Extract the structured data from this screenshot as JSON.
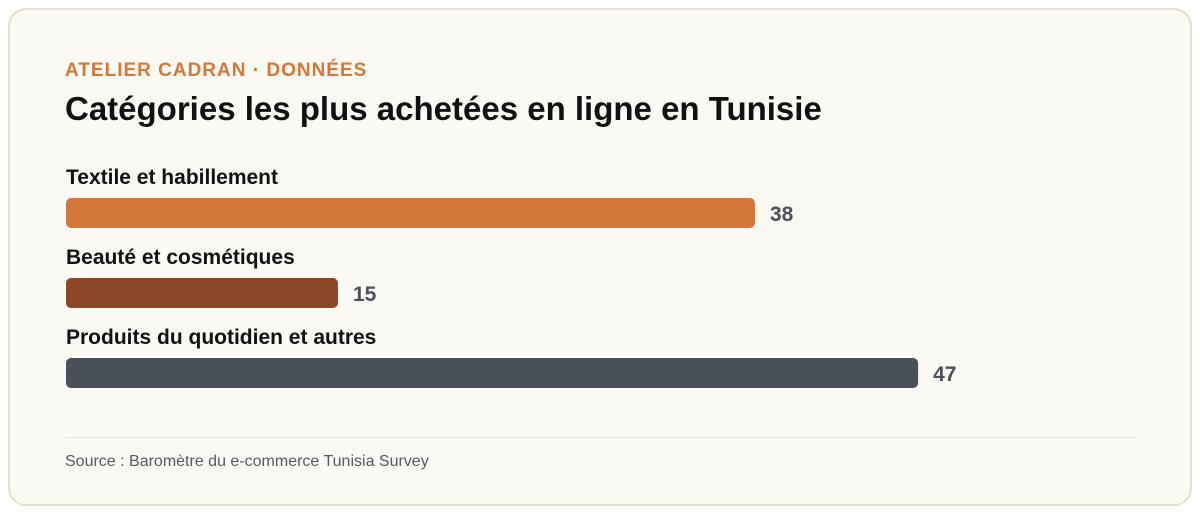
{
  "header": {
    "eyebrow": "ATELIER CADRAN · DONNÉES",
    "title": "Catégories les plus achetées en ligne en Tunisie"
  },
  "chart_data": {
    "type": "bar",
    "orientation": "horizontal",
    "categories": [
      "Textile et habillement",
      "Beauté et cosmétiques",
      "Produits du quotidien et autres"
    ],
    "values": [
      38,
      15,
      47
    ],
    "value_labels": [
      "38",
      "15",
      "47"
    ],
    "colors": [
      "#d4773b",
      "#8b4727",
      "#4a5058"
    ],
    "title": "Catégories les plus achetées en ligne en Tunisie",
    "xlabel": "",
    "ylabel": "",
    "grid": false,
    "legend": "none"
  },
  "footer": {
    "source": "Source : Baromètre du e-commerce Tunisia Survey"
  }
}
